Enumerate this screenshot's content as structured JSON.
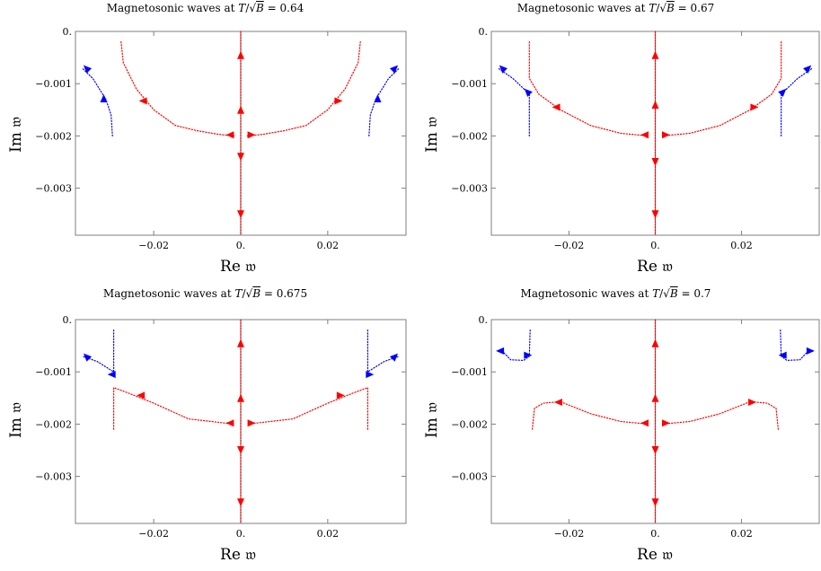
{
  "chart_data": [
    {
      "type": "line",
      "title": "Magnetosonic waves at T/√B = 0.64",
      "title_prefix": "Magnetosonic waves at ",
      "title_value": "0.64",
      "xlabel": "Re 𝔴",
      "ylabel": "Im 𝔴",
      "xlim": [
        -0.038,
        0.038
      ],
      "ylim": [
        -0.0039,
        0.0
      ],
      "xticks": [
        -0.02,
        0.0,
        0.02
      ],
      "xtick_labels": [
        "−0.02",
        "0.",
        "0.02"
      ],
      "yticks": [
        0.0,
        -0.001,
        -0.002,
        -0.003
      ],
      "ytick_labels": [
        "0.",
        "−0.001",
        "−0.002",
        "−0.003"
      ],
      "grid": false,
      "colors": {
        "red": "#ff0000",
        "blue": "#0000ff",
        "axis": "#7f7f7f"
      },
      "series": [
        {
          "color": "red",
          "points": [
            [
              -0.0275,
              -0.0002
            ],
            [
              -0.027,
              -0.0006
            ],
            [
              -0.024,
              -0.0011
            ],
            [
              -0.02,
              -0.0015
            ],
            [
              -0.015,
              -0.0018
            ],
            [
              -0.01,
              -0.0019
            ],
            [
              -0.005,
              -0.00197
            ],
            [
              -0.0015,
              -0.002
            ]
          ]
        },
        {
          "color": "red",
          "points": [
            [
              0.0275,
              -0.0002
            ],
            [
              0.027,
              -0.0006
            ],
            [
              0.024,
              -0.0011
            ],
            [
              0.02,
              -0.0015
            ],
            [
              0.015,
              -0.0018
            ],
            [
              0.01,
              -0.0019
            ],
            [
              0.005,
              -0.00197
            ],
            [
              0.0015,
              -0.002
            ]
          ]
        },
        {
          "color": "blue",
          "points": [
            [
              -0.0295,
              -0.002
            ],
            [
              -0.0298,
              -0.0016
            ],
            [
              -0.031,
              -0.0013
            ],
            [
              -0.034,
              -0.0009
            ],
            [
              -0.0365,
              -0.0007
            ]
          ]
        },
        {
          "color": "blue",
          "points": [
            [
              0.0295,
              -0.002
            ],
            [
              0.0298,
              -0.0016
            ],
            [
              0.031,
              -0.0013
            ],
            [
              0.034,
              -0.0009
            ],
            [
              0.0365,
              -0.0007
            ]
          ]
        },
        {
          "color": "red",
          "points": [
            [
              0,
              0
            ],
            [
              0,
              -0.0039
            ]
          ]
        }
      ],
      "arrows": [
        {
          "color": "red",
          "x": -0.0025,
          "y": -0.00198,
          "dir": "left"
        },
        {
          "color": "red",
          "x": 0.0025,
          "y": -0.00198,
          "dir": "right"
        },
        {
          "color": "red",
          "x": -0.0225,
          "y": -0.00133,
          "dir": "left"
        },
        {
          "color": "red",
          "x": 0.0225,
          "y": -0.00133,
          "dir": "right"
        },
        {
          "color": "blue",
          "x": -0.0315,
          "y": -0.00128,
          "dir": "up"
        },
        {
          "color": "blue",
          "x": 0.0315,
          "y": -0.00128,
          "dir": "up"
        },
        {
          "color": "blue",
          "x": -0.0355,
          "y": -0.0007,
          "dir": "upleft"
        },
        {
          "color": "blue",
          "x": 0.0355,
          "y": -0.0007,
          "dir": "upright"
        },
        {
          "color": "red",
          "x": 0,
          "y": -0.00045,
          "dir": "up"
        },
        {
          "color": "red",
          "x": 0,
          "y": -0.0015,
          "dir": "up"
        },
        {
          "color": "red",
          "x": 0,
          "y": -0.0024,
          "dir": "down"
        },
        {
          "color": "red",
          "x": 0,
          "y": -0.0035,
          "dir": "down"
        }
      ]
    },
    {
      "type": "line",
      "title": "Magnetosonic waves at T/√B = 0.67",
      "title_prefix": "Magnetosonic waves at ",
      "title_value": "0.67",
      "xlabel": "Re 𝔴",
      "ylabel": "Im 𝔴",
      "xlim": [
        -0.038,
        0.038
      ],
      "ylim": [
        -0.0039,
        0.0
      ],
      "xticks": [
        -0.02,
        0.0,
        0.02
      ],
      "xtick_labels": [
        "−0.02",
        "0.",
        "0.02"
      ],
      "yticks": [
        0.0,
        -0.001,
        -0.002,
        -0.003
      ],
      "ytick_labels": [
        "0.",
        "−0.001",
        "−0.002",
        "−0.003"
      ],
      "grid": false,
      "colors": {
        "red": "#ff0000",
        "blue": "#0000ff",
        "axis": "#7f7f7f"
      },
      "series": [
        {
          "color": "red",
          "points": [
            [
              -0.0292,
              -0.0002
            ],
            [
              -0.0292,
              -0.0009
            ],
            [
              -0.027,
              -0.0012
            ],
            [
              -0.022,
              -0.0015
            ],
            [
              -0.015,
              -0.0018
            ],
            [
              -0.008,
              -0.00195
            ],
            [
              -0.0015,
              -0.002
            ]
          ]
        },
        {
          "color": "red",
          "points": [
            [
              0.0292,
              -0.0002
            ],
            [
              0.0292,
              -0.0009
            ],
            [
              0.027,
              -0.0012
            ],
            [
              0.022,
              -0.0015
            ],
            [
              0.015,
              -0.0018
            ],
            [
              0.008,
              -0.00195
            ],
            [
              0.0015,
              -0.002
            ]
          ]
        },
        {
          "color": "blue",
          "points": [
            [
              -0.0292,
              -0.002
            ],
            [
              -0.0292,
              -0.0012
            ],
            [
              -0.033,
              -0.0009
            ],
            [
              -0.0365,
              -0.0007
            ]
          ]
        },
        {
          "color": "blue",
          "points": [
            [
              0.0292,
              -0.002
            ],
            [
              0.0292,
              -0.0012
            ],
            [
              0.033,
              -0.0009
            ],
            [
              0.0365,
              -0.0007
            ]
          ]
        },
        {
          "color": "red",
          "points": [
            [
              0,
              0
            ],
            [
              0,
              -0.0039
            ]
          ]
        }
      ],
      "arrows": [
        {
          "color": "red",
          "x": -0.0025,
          "y": -0.00198,
          "dir": "left"
        },
        {
          "color": "red",
          "x": 0.0025,
          "y": -0.00198,
          "dir": "right"
        },
        {
          "color": "red",
          "x": -0.023,
          "y": -0.00145,
          "dir": "left"
        },
        {
          "color": "red",
          "x": 0.023,
          "y": -0.00145,
          "dir": "right"
        },
        {
          "color": "blue",
          "x": -0.0297,
          "y": -0.00115,
          "dir": "upleft"
        },
        {
          "color": "blue",
          "x": 0.0297,
          "y": -0.00115,
          "dir": "upright"
        },
        {
          "color": "blue",
          "x": -0.0355,
          "y": -0.0007,
          "dir": "upleft"
        },
        {
          "color": "blue",
          "x": 0.0355,
          "y": -0.0007,
          "dir": "upright"
        },
        {
          "color": "red",
          "x": 0,
          "y": -0.00045,
          "dir": "up"
        },
        {
          "color": "red",
          "x": 0,
          "y": -0.0014,
          "dir": "up"
        },
        {
          "color": "red",
          "x": 0,
          "y": -0.0025,
          "dir": "down"
        },
        {
          "color": "red",
          "x": 0,
          "y": -0.0035,
          "dir": "down"
        }
      ]
    },
    {
      "type": "line",
      "title": "Magnetosonic waves at T/√B = 0.675",
      "title_prefix": "Magnetosonic waves at ",
      "title_value": "0.675",
      "xlabel": "Re 𝔴",
      "ylabel": "Im 𝔴",
      "xlim": [
        -0.038,
        0.038
      ],
      "ylim": [
        -0.0039,
        0.0
      ],
      "xticks": [
        -0.02,
        0.0,
        0.02
      ],
      "xtick_labels": [
        "−0.02",
        "0.",
        "0.02"
      ],
      "yticks": [
        0.0,
        -0.001,
        -0.002,
        -0.003
      ],
      "ytick_labels": [
        "0.",
        "−0.001",
        "−0.002",
        "−0.003"
      ],
      "grid": false,
      "colors": {
        "red": "#ff0000",
        "blue": "#0000ff",
        "axis": "#7f7f7f"
      },
      "series": [
        {
          "color": "red",
          "points": [
            [
              -0.0292,
              -0.0021
            ],
            [
              -0.0292,
              -0.0013
            ],
            [
              -0.026,
              -0.0014
            ],
            [
              -0.02,
              -0.0016
            ],
            [
              -0.012,
              -0.0019
            ],
            [
              -0.0015,
              -0.002
            ]
          ]
        },
        {
          "color": "red",
          "points": [
            [
              0.0292,
              -0.0021
            ],
            [
              0.0292,
              -0.0013
            ],
            [
              0.026,
              -0.0014
            ],
            [
              0.02,
              -0.0016
            ],
            [
              0.012,
              -0.0019
            ],
            [
              0.0015,
              -0.002
            ]
          ]
        },
        {
          "color": "blue",
          "points": [
            [
              -0.0292,
              -0.0002
            ],
            [
              -0.0292,
              -0.001
            ],
            [
              -0.033,
              -0.0008
            ],
            [
              -0.0365,
              -0.0007
            ]
          ]
        },
        {
          "color": "blue",
          "points": [
            [
              0.0292,
              -0.0002
            ],
            [
              0.0292,
              -0.001
            ],
            [
              0.033,
              -0.0008
            ],
            [
              0.0365,
              -0.0007
            ]
          ]
        },
        {
          "color": "red",
          "points": [
            [
              0,
              0
            ],
            [
              0,
              -0.0039
            ]
          ]
        }
      ],
      "arrows": [
        {
          "color": "red",
          "x": -0.0025,
          "y": -0.00198,
          "dir": "left"
        },
        {
          "color": "red",
          "x": 0.0025,
          "y": -0.00198,
          "dir": "right"
        },
        {
          "color": "red",
          "x": -0.023,
          "y": -0.00145,
          "dir": "left"
        },
        {
          "color": "red",
          "x": 0.023,
          "y": -0.00145,
          "dir": "right"
        },
        {
          "color": "blue",
          "x": -0.0297,
          "y": -0.00105,
          "dir": "left"
        },
        {
          "color": "blue",
          "x": 0.0297,
          "y": -0.00105,
          "dir": "right"
        },
        {
          "color": "blue",
          "x": -0.0355,
          "y": -0.0007,
          "dir": "upleft"
        },
        {
          "color": "blue",
          "x": 0.0355,
          "y": -0.0007,
          "dir": "upright"
        },
        {
          "color": "red",
          "x": 0,
          "y": -0.00045,
          "dir": "up"
        },
        {
          "color": "red",
          "x": 0,
          "y": -0.0015,
          "dir": "up"
        },
        {
          "color": "red",
          "x": 0,
          "y": -0.0025,
          "dir": "down"
        },
        {
          "color": "red",
          "x": 0,
          "y": -0.0035,
          "dir": "down"
        }
      ]
    },
    {
      "type": "line",
      "title": "Magnetosonic waves at T/√B = 0.7",
      "title_prefix": "Magnetosonic waves at ",
      "title_value": "0.7",
      "xlabel": "Re 𝔴",
      "ylabel": "Im 𝔴",
      "xlim": [
        -0.038,
        0.038
      ],
      "ylim": [
        -0.0039,
        0.0
      ],
      "xticks": [
        -0.02,
        0.0,
        0.02
      ],
      "xtick_labels": [
        "−0.02",
        "0.",
        "0.02"
      ],
      "yticks": [
        0.0,
        -0.001,
        -0.002,
        -0.003
      ],
      "ytick_labels": [
        "0.",
        "−0.001",
        "−0.002",
        "−0.003"
      ],
      "grid": false,
      "colors": {
        "red": "#ff0000",
        "blue": "#0000ff",
        "axis": "#7f7f7f"
      },
      "series": [
        {
          "color": "red",
          "points": [
            [
              -0.0285,
              -0.0021
            ],
            [
              -0.028,
              -0.0017
            ],
            [
              -0.026,
              -0.0016
            ],
            [
              -0.022,
              -0.00157
            ],
            [
              -0.015,
              -0.0018
            ],
            [
              -0.008,
              -0.00195
            ],
            [
              -0.0015,
              -0.002
            ]
          ]
        },
        {
          "color": "red",
          "points": [
            [
              0.0285,
              -0.0021
            ],
            [
              0.028,
              -0.0017
            ],
            [
              0.026,
              -0.0016
            ],
            [
              0.022,
              -0.00157
            ],
            [
              0.015,
              -0.0018
            ],
            [
              0.008,
              -0.00195
            ],
            [
              0.0015,
              -0.002
            ]
          ]
        },
        {
          "color": "blue",
          "points": [
            [
              -0.029,
              -0.0002
            ],
            [
              -0.0292,
              -0.0007
            ],
            [
              -0.0305,
              -0.00078
            ],
            [
              -0.0335,
              -0.00077
            ],
            [
              -0.0355,
              -0.0006
            ]
          ]
        },
        {
          "color": "blue",
          "points": [
            [
              0.029,
              -0.0002
            ],
            [
              0.0292,
              -0.0007
            ],
            [
              0.0305,
              -0.00078
            ],
            [
              0.0335,
              -0.00077
            ],
            [
              0.0355,
              -0.0006
            ]
          ]
        },
        {
          "color": "red",
          "points": [
            [
              0,
              0
            ],
            [
              0,
              -0.0039
            ]
          ]
        }
      ],
      "arrows": [
        {
          "color": "red",
          "x": -0.0025,
          "y": -0.00198,
          "dir": "left"
        },
        {
          "color": "red",
          "x": 0.0025,
          "y": -0.00198,
          "dir": "right"
        },
        {
          "color": "red",
          "x": -0.0225,
          "y": -0.00158,
          "dir": "left"
        },
        {
          "color": "red",
          "x": 0.0225,
          "y": -0.00158,
          "dir": "right"
        },
        {
          "color": "blue",
          "x": -0.0295,
          "y": -0.00068,
          "dir": "right"
        },
        {
          "color": "blue",
          "x": 0.0295,
          "y": -0.00068,
          "dir": "left"
        },
        {
          "color": "blue",
          "x": -0.036,
          "y": -0.0006,
          "dir": "left"
        },
        {
          "color": "blue",
          "x": 0.036,
          "y": -0.0006,
          "dir": "right"
        },
        {
          "color": "red",
          "x": 0,
          "y": -0.00045,
          "dir": "up"
        },
        {
          "color": "red",
          "x": 0,
          "y": -0.0015,
          "dir": "up"
        },
        {
          "color": "red",
          "x": 0,
          "y": -0.0025,
          "dir": "down"
        },
        {
          "color": "red",
          "x": 0,
          "y": -0.0035,
          "dir": "down"
        }
      ]
    }
  ]
}
